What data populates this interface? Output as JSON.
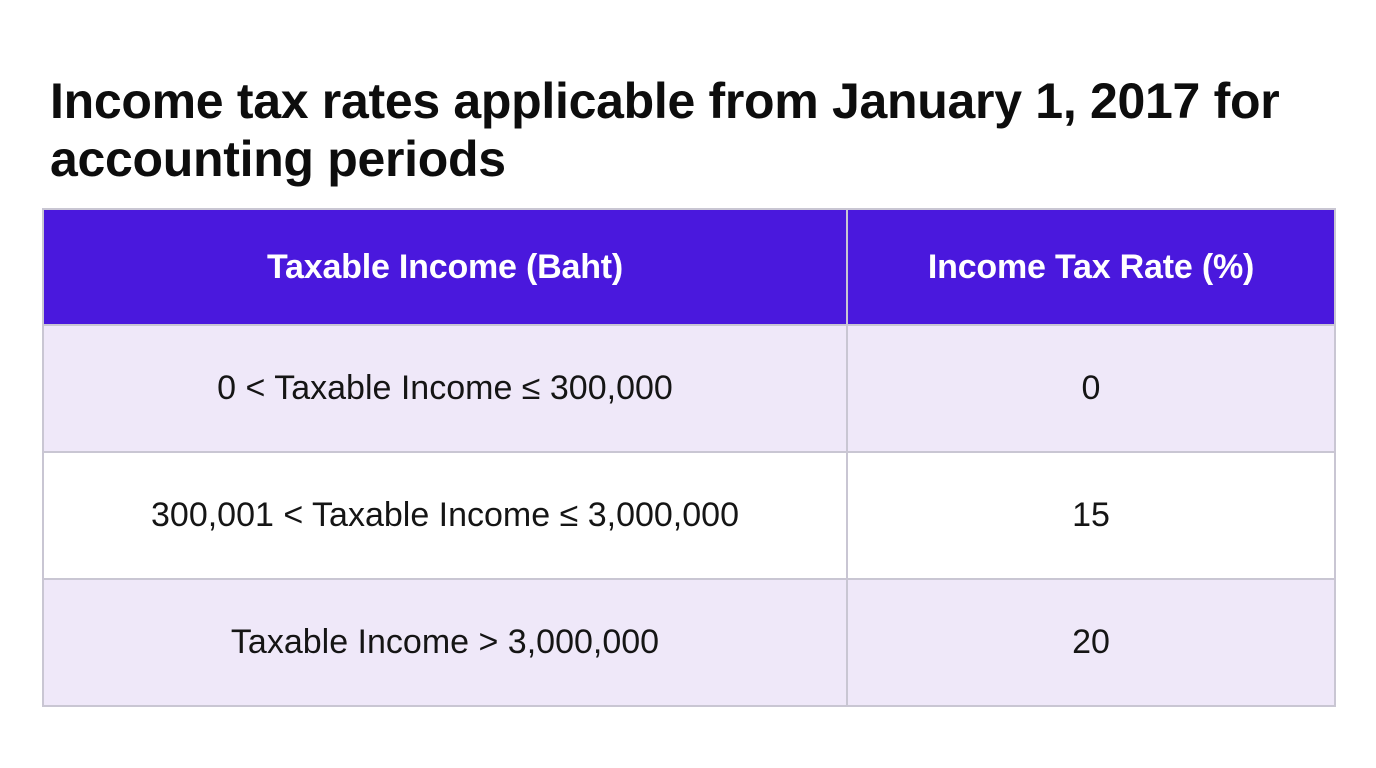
{
  "title": "Income tax rates applicable from January 1, 2017 for accounting periods",
  "table": {
    "headers": [
      "Taxable Income (Baht)",
      "Income Tax Rate (%)"
    ],
    "rows": [
      [
        "0 < Taxable Income ≤ 300,000",
        "0"
      ],
      [
        "300,001 < Taxable Income ≤ 3,000,000",
        "15"
      ],
      [
        "Taxable Income > 3,000,000",
        "20"
      ]
    ]
  },
  "colors": {
    "header_background": "#4a18dd",
    "header_text": "#ffffff",
    "shaded_row_background": "#efe8f9",
    "plain_row_background": "#ffffff",
    "border": "#c9c6d3"
  }
}
